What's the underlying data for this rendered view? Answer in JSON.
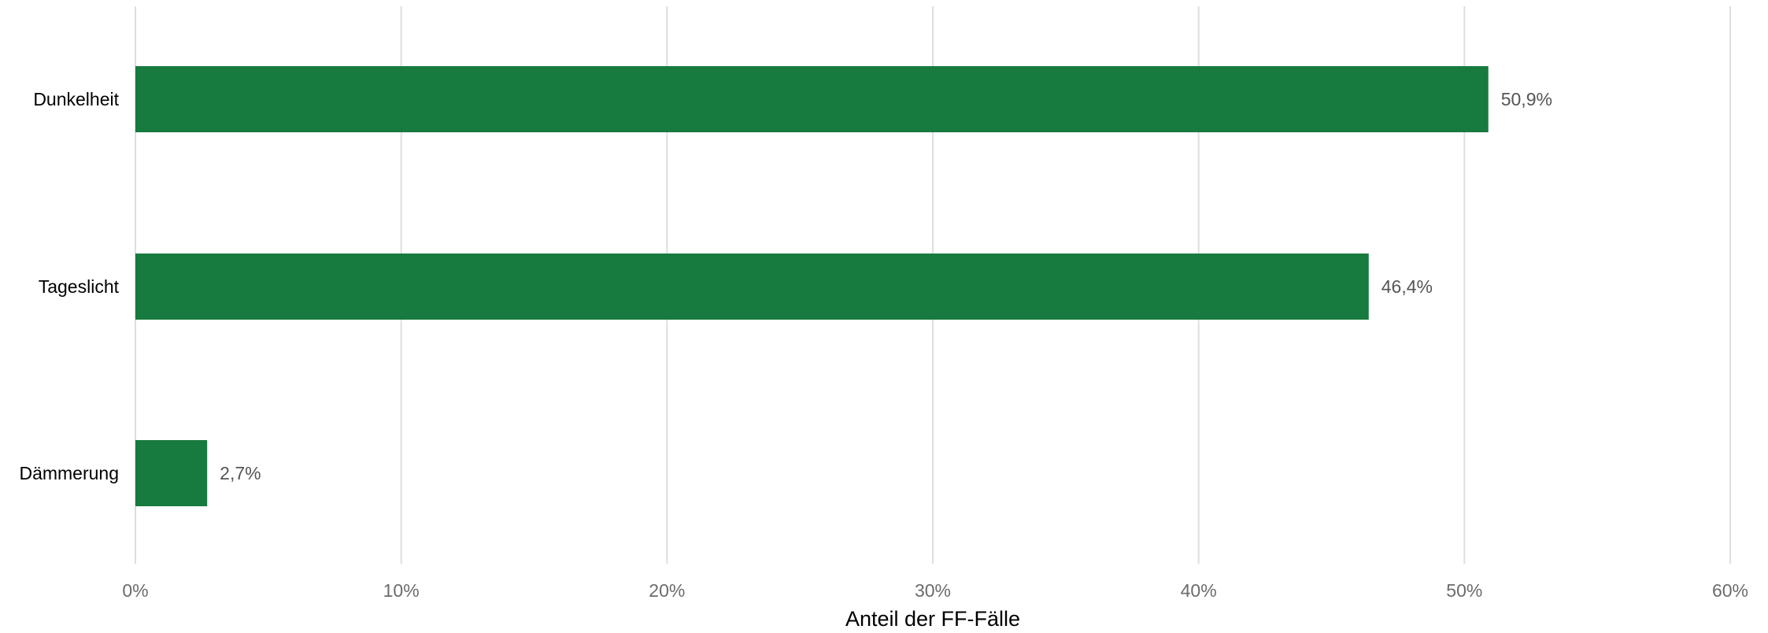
{
  "chart_data": {
    "type": "bar",
    "orientation": "horizontal",
    "categories": [
      "Dunkelheit",
      "Tageslicht",
      "Dämmerung"
    ],
    "values": [
      50.9,
      46.4,
      2.7
    ],
    "value_labels": [
      "50,9%",
      "46,4%",
      "2,7%"
    ],
    "xlim": [
      0,
      60
    ],
    "x_ticks": [
      0,
      10,
      20,
      30,
      40,
      50,
      60
    ],
    "x_tick_labels": [
      "0%",
      "10%",
      "20%",
      "30%",
      "40%",
      "50%",
      "60%"
    ],
    "xlabel": "Anteil der FF-Fälle",
    "ylabel": "",
    "grid": "vertical",
    "bar_color": "#177a3e"
  }
}
